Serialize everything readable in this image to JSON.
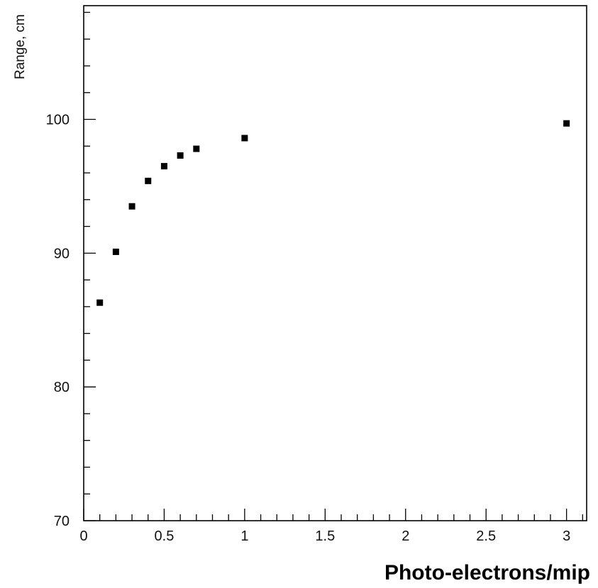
{
  "chart_data": {
    "type": "scatter",
    "title": "",
    "xlabel": "Photo-electrons/mip",
    "ylabel": "Range, cm",
    "xlim": [
      0,
      3.125
    ],
    "ylim": [
      70,
      108.5
    ],
    "x_ticks": [
      0,
      0.5,
      1,
      1.5,
      2,
      2.5,
      3
    ],
    "x_tick_labels": [
      "0",
      "0.5",
      "1",
      "1.5",
      "2",
      "2.5",
      "3"
    ],
    "y_ticks": [
      70,
      80,
      90,
      100
    ],
    "y_tick_labels": [
      "70",
      "80",
      "90",
      "100"
    ],
    "grid": false,
    "legend": "none",
    "marker": "square",
    "marker_color": "#000000",
    "series": [
      {
        "x": [
          0.1,
          0.2,
          0.3,
          0.4,
          0.5,
          0.6,
          0.7,
          1.0,
          3.0
        ],
        "y": [
          86.3,
          90.1,
          93.5,
          95.4,
          96.5,
          97.3,
          97.8,
          98.6,
          99.7
        ]
      }
    ]
  }
}
